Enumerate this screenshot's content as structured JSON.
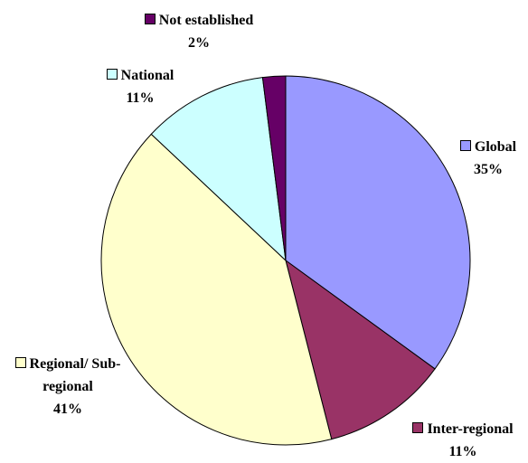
{
  "chart_data": {
    "type": "pie",
    "categories": [
      "Global",
      "Inter-regional",
      "Regional/ Sub-regional",
      "National",
      "Not established"
    ],
    "values": [
      35,
      11,
      41,
      11,
      2
    ],
    "value_labels": [
      "35%",
      "11%",
      "41%",
      "11%",
      "2%"
    ],
    "colors": [
      "#9999ff",
      "#993366",
      "#ffffcc",
      "#ccffff",
      "#660066"
    ]
  }
}
